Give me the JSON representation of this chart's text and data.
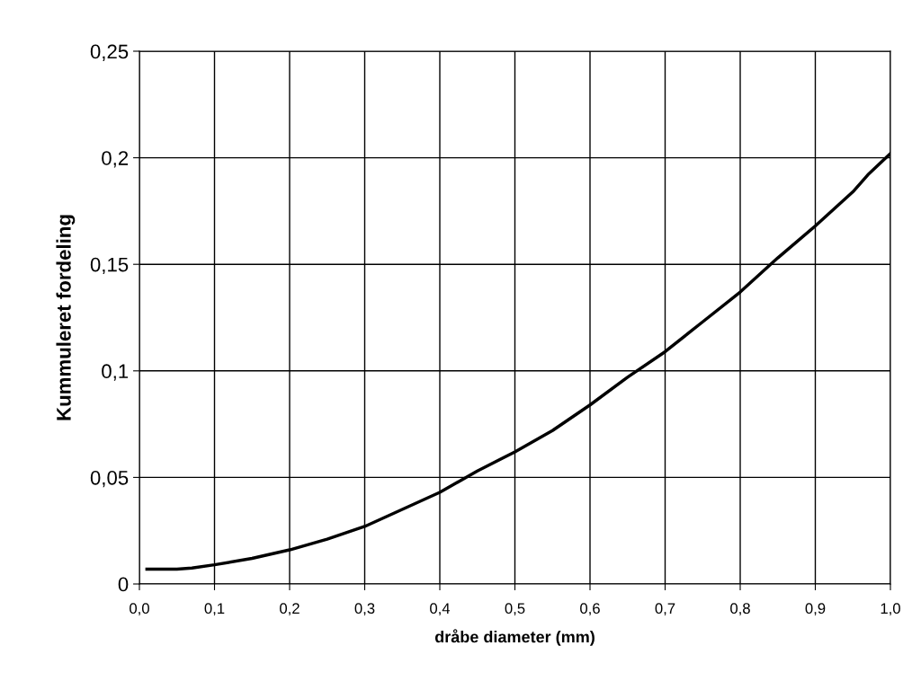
{
  "chart_data": {
    "type": "line",
    "xlabel": "dråbe diameter (mm)",
    "ylabel": "Kummuleret fordeling",
    "x": [
      0.01,
      0.05,
      0.07,
      0.1,
      0.15,
      0.2,
      0.25,
      0.3,
      0.35,
      0.4,
      0.45,
      0.5,
      0.55,
      0.6,
      0.65,
      0.7,
      0.75,
      0.8,
      0.85,
      0.9,
      0.95,
      0.97,
      1.0
    ],
    "series": [
      {
        "color": "#000000",
        "values": [
          0.007,
          0.007,
          0.0075,
          0.009,
          0.012,
          0.016,
          0.021,
          0.027,
          0.035,
          0.043,
          0.053,
          0.062,
          0.072,
          0.084,
          0.097,
          0.109,
          0.123,
          0.137,
          0.153,
          0.168,
          0.184,
          0.192,
          0.202
        ]
      }
    ],
    "xlim": [
      0,
      1.0
    ],
    "xticks": [
      {
        "value": 0,
        "label": "0,0"
      },
      {
        "value": 0.1,
        "label": "0,1"
      },
      {
        "value": 0.2,
        "label": "0,2"
      },
      {
        "value": 0.3,
        "label": "0,3"
      },
      {
        "value": 0.4,
        "label": "0,4"
      },
      {
        "value": 0.5,
        "label": "0,5"
      },
      {
        "value": 0.6,
        "label": "0,6"
      },
      {
        "value": 0.7,
        "label": "0,7"
      },
      {
        "value": 0.8,
        "label": "0,8"
      },
      {
        "value": 0.9,
        "label": "0,9"
      },
      {
        "value": 1.0,
        "label": "1,0"
      }
    ],
    "ylim": [
      0,
      0.25
    ],
    "yticks": [
      0,
      {
        "value": 0.05,
        "label": "0,05"
      },
      {
        "value": 0.1,
        "label": "0,1"
      },
      {
        "value": 0.15,
        "label": "0,15"
      },
      {
        "value": 0.2,
        "label": "0,2"
      },
      {
        "value": 0.25,
        "label": "0,25"
      }
    ],
    "grid": true,
    "marker": "none",
    "line_style": "solid"
  }
}
